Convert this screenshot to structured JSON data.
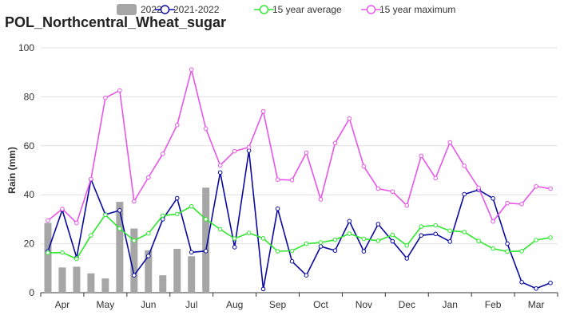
{
  "chart_data": {
    "type": "bar+line",
    "title": "POL_Northcentral_Wheat_sugar",
    "ylabel": "Rain (mm)",
    "xlabel": "",
    "ylim": [
      0,
      100
    ],
    "yticks": [
      0,
      20,
      40,
      60,
      80,
      100
    ],
    "grid": true,
    "legend_position": "top",
    "x_count": 36,
    "month_labels": [
      {
        "label": "Apr",
        "center": 1
      },
      {
        "label": "May",
        "center": 4
      },
      {
        "label": "Jun",
        "center": 7
      },
      {
        "label": "Jul",
        "center": 10
      },
      {
        "label": "Aug",
        "center": 13
      },
      {
        "label": "Sep",
        "center": 16
      },
      {
        "label": "Oct",
        "center": 19
      },
      {
        "label": "Nov",
        "center": 22
      },
      {
        "label": "Dec",
        "center": 25
      },
      {
        "label": "Jan",
        "center": 28
      },
      {
        "label": "Feb",
        "center": 31
      },
      {
        "label": "Mar",
        "center": 34
      }
    ],
    "series": [
      {
        "name": "2022",
        "type": "bar",
        "color": "#a6a6a6",
        "values": [
          28.5,
          10.3,
          10.6,
          7.9,
          5.8,
          37.1,
          26.2,
          17.3,
          7.1,
          17.9,
          14.9,
          42.9
        ]
      },
      {
        "name": "2021-2022",
        "type": "line",
        "color": "#0a0aa0",
        "values": [
          16.9,
          33.8,
          14.3,
          46.3,
          31.9,
          33.6,
          7.1,
          15.0,
          30.0,
          38.6,
          16.5,
          17.0,
          49.1,
          18.6,
          58.0,
          1.5,
          34.3,
          12.8,
          7.1,
          18.9,
          17.2,
          29.2,
          16.9,
          28.0,
          21.0,
          14.0,
          23.4,
          24.0,
          20.9,
          40.2,
          42.0,
          38.5,
          20.0,
          4.3,
          1.7,
          4.0
        ]
      },
      {
        "name": "15 year average",
        "type": "line",
        "color": "#2ee82e",
        "values": [
          16.3,
          16.4,
          13.8,
          23.4,
          31.8,
          26.2,
          21.3,
          24.2,
          31.5,
          32.1,
          35.3,
          30.0,
          25.9,
          22.1,
          24.4,
          22.2,
          16.9,
          17.1,
          20.0,
          20.5,
          21.6,
          24.1,
          22.0,
          21.2,
          23.6,
          19.3,
          27.0,
          27.5,
          25.3,
          24.8,
          21.1,
          18.0,
          16.8,
          17.0,
          21.5,
          22.5
        ]
      },
      {
        "name": "15 year maximum",
        "type": "line",
        "color": "#e855e8",
        "values": [
          29.5,
          34.2,
          28.5,
          46.4,
          79.6,
          82.6,
          37.3,
          47.1,
          56.7,
          68.5,
          91.1,
          67.0,
          52.0,
          57.8,
          59.4,
          74.1,
          46.2,
          46.0,
          57.2,
          38.1,
          61.1,
          71.1,
          51.6,
          42.5,
          41.3,
          35.6,
          55.9,
          46.8,
          61.4,
          51.8,
          42.8,
          29.1,
          36.6,
          36.2,
          43.4,
          42.5
        ]
      }
    ]
  }
}
